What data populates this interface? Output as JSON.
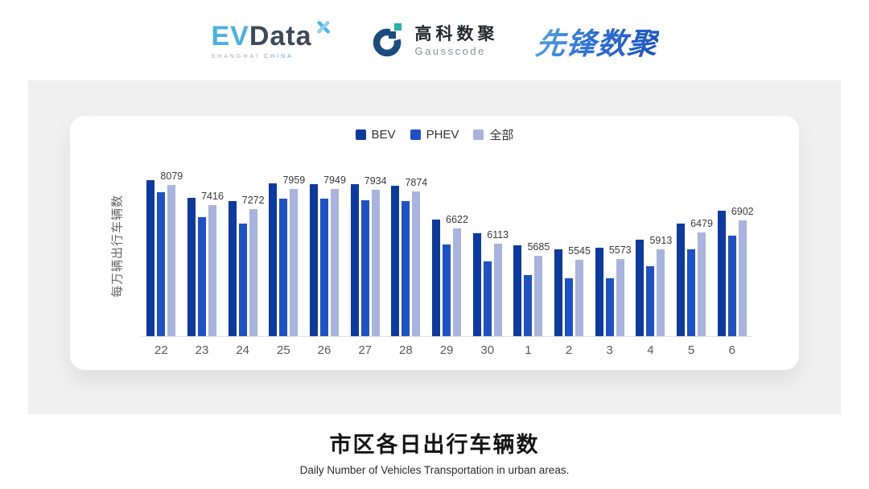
{
  "header": {
    "evdata": {
      "part1": "EV",
      "part2": "Data",
      "sub1": "SHANGHAI",
      "sub2": "CHINA"
    },
    "gausscode": {
      "name_cn": "高科数聚",
      "name_en": "Gausscode"
    },
    "pioneer": {
      "name": "先锋数聚"
    }
  },
  "colors": {
    "bev": "#0d3a9e",
    "phev": "#1c52c5",
    "all": "#a9b4de",
    "axis_line": "#e2e2e2",
    "panel_bg": "#f0f0f1",
    "pioneer_blue": "#2a6ad0",
    "evdata_blue": "#49b2e4",
    "gauss_navy": "#1b4b7e",
    "gauss_teal": "#26b2ab"
  },
  "chart_data": {
    "type": "bar",
    "title": "市区各日出行车辆数",
    "subtitle": "Daily Number of Vehicles Transportation in urban areas.",
    "ylabel": "每万辆出行车辆数",
    "categories": [
      "22",
      "23",
      "24",
      "25",
      "26",
      "27",
      "28",
      "29",
      "30",
      "1",
      "2",
      "3",
      "4",
      "5",
      "6"
    ],
    "series": [
      {
        "key": "bev",
        "name": "BEV",
        "color": "#0d3a9e",
        "values_estimated": true,
        "values": [
          8240,
          7660,
          7540,
          8140,
          8120,
          8120,
          8050,
          6930,
          6460,
          6040,
          5910,
          5960,
          6250,
          6790,
          7220
        ]
      },
      {
        "key": "phev",
        "name": "PHEV",
        "color": "#1c52c5",
        "values_estimated": true,
        "values": [
          7850,
          6990,
          6780,
          7630,
          7620,
          7580,
          7540,
          6070,
          5500,
          5030,
          4940,
          4940,
          5330,
          5910,
          6360
        ]
      },
      {
        "key": "all",
        "name": "全部",
        "color": "#a9b4de",
        "values_estimated": false,
        "values": [
          8079,
          7416,
          7272,
          7959,
          7949,
          7934,
          7874,
          6622,
          6113,
          5685,
          5545,
          5573,
          5913,
          6479,
          6902
        ]
      }
    ],
    "data_labels": [
      "8079",
      "7416",
      "7272",
      "7959",
      "7949",
      "7934",
      "7874",
      "6622",
      "6113",
      "5685",
      "5545",
      "5573",
      "5913",
      "6479",
      "6902"
    ],
    "data_labels_series": "全部",
    "y_axis": {
      "min": 2970,
      "max": 9230,
      "ticks_visible": false
    },
    "grid": false,
    "legend_position": "top-center"
  }
}
